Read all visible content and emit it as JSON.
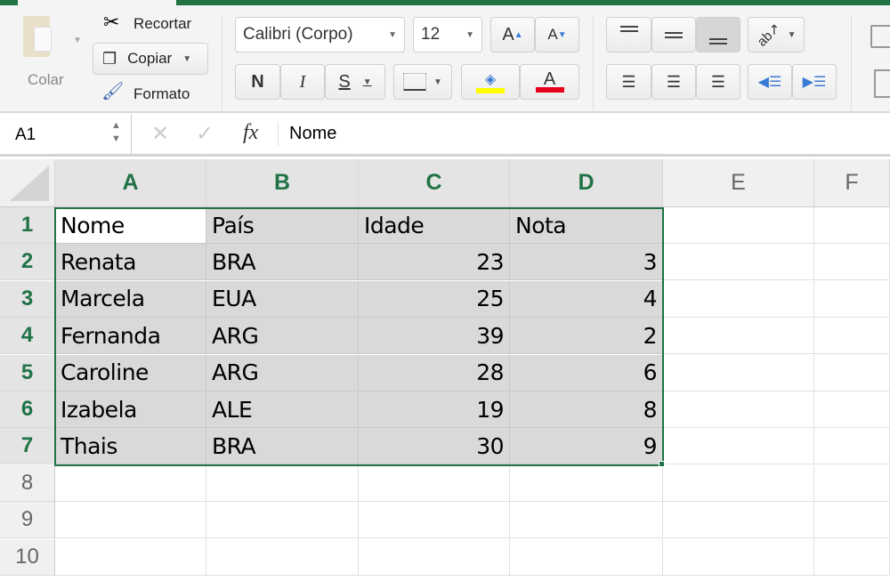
{
  "ribbon": {
    "paste_label": "Colar",
    "cut_label": "Recortar",
    "copy_label": "Copiar",
    "format_label": "Formato",
    "font_name": "Calibri (Corpo)",
    "font_size": "12",
    "bold": "N",
    "italic": "I",
    "underline": "S",
    "grow_font": "A",
    "shrink_font": "A",
    "font_color": "A",
    "fill_color": "#ffff00",
    "font_color_value": "#e8001c"
  },
  "formula_bar": {
    "name_box": "A1",
    "fx": "fx",
    "value": "Nome"
  },
  "sheet": {
    "columns": [
      "A",
      "B",
      "C",
      "D",
      "E",
      "F"
    ],
    "row_numbers": [
      "1",
      "2",
      "3",
      "4",
      "5",
      "6",
      "7",
      "8",
      "9",
      "10"
    ],
    "rows": [
      [
        "Nome",
        "País",
        "Idade",
        "Nota"
      ],
      [
        "Renata",
        "BRA",
        "23",
        "3"
      ],
      [
        "Marcela",
        "EUA",
        "25",
        "4"
      ],
      [
        "Fernanda",
        "ARG",
        "39",
        "2"
      ],
      [
        "Caroline",
        "ARG",
        "28",
        "6"
      ],
      [
        "Izabela",
        "ALE",
        "19",
        "8"
      ],
      [
        "Thais",
        "BRA",
        "30",
        "9"
      ]
    ],
    "active_cell": "A1",
    "selection": "A1:D7",
    "accent": "#217346"
  }
}
